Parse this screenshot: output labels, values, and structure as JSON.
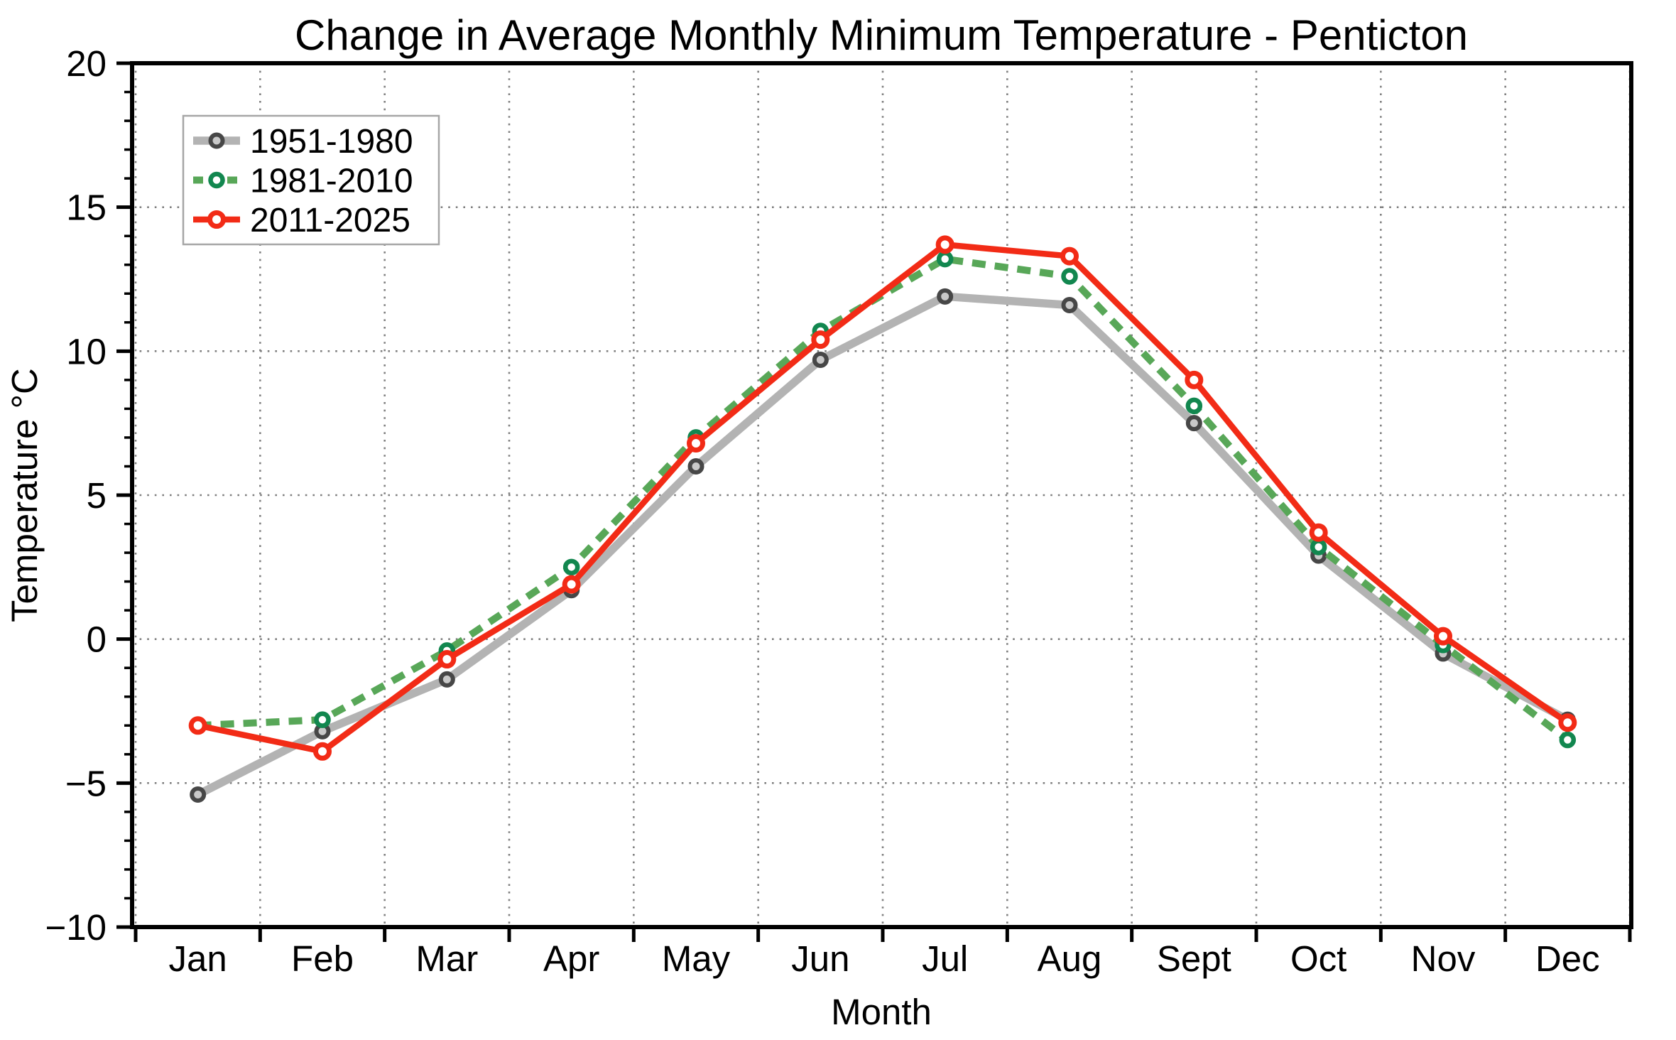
{
  "chart_data": {
    "type": "line",
    "title": "Change in Average Monthly Minimum Temperature - Penticton",
    "xlabel": "Month",
    "ylabel": "Temperature °C",
    "categories": [
      "Jan",
      "Feb",
      "Mar",
      "Apr",
      "May",
      "Jun",
      "Jul",
      "Aug",
      "Sept",
      "Oct",
      "Nov",
      "Dec"
    ],
    "ylim": [
      -10,
      20
    ],
    "ytick_step": 5,
    "ytick_labels": [
      "−10",
      "−5",
      "0",
      "5",
      "10",
      "15",
      "20"
    ],
    "y_minor_step": 1,
    "grid": "dotted both axes, vertical lines at month boundaries",
    "legend_position": "upper left",
    "background_color": "#ffffff",
    "axis_color": "#000000",
    "grid_color": "#7f7f7f",
    "legend_border_color": "#a6a6a6",
    "series": [
      {
        "name": "1951-1980",
        "color": "#b3b3b3",
        "style": "solid",
        "line_width": 11.5,
        "dash": null,
        "marker": "circle",
        "marker_edge": "#474747",
        "marker_fill": "#c9c9c9",
        "marker_radius": 8.5,
        "marker_edge_width": 6,
        "values": [
          -5.4,
          -3.2,
          -1.4,
          1.7,
          6.0,
          9.7,
          11.9,
          11.6,
          7.5,
          2.9,
          -0.5,
          -2.8
        ]
      },
      {
        "name": "1981-2010",
        "color": "#58a758",
        "style": "dashed",
        "line_width": 10,
        "dash": "19 13",
        "marker": "circle",
        "marker_edge": "#12874f",
        "marker_fill": "#ffffff",
        "marker_radius": 8.5,
        "marker_edge_width": 6.5,
        "values": [
          -3.0,
          -2.8,
          -0.4,
          2.5,
          7.0,
          10.7,
          13.2,
          12.6,
          8.1,
          3.2,
          -0.2,
          -3.5
        ]
      },
      {
        "name": "2011-2025",
        "color": "#f22b16",
        "style": "solid",
        "line_width": 8.5,
        "dash": null,
        "marker": "circle",
        "marker_edge": "#f22b16",
        "marker_fill": "#ffffff",
        "marker_radius": 9.5,
        "marker_edge_width": 7,
        "values": [
          -3.0,
          -3.9,
          -0.7,
          1.9,
          6.8,
          10.4,
          13.7,
          13.3,
          9.0,
          3.7,
          0.1,
          -2.9
        ]
      }
    ]
  }
}
